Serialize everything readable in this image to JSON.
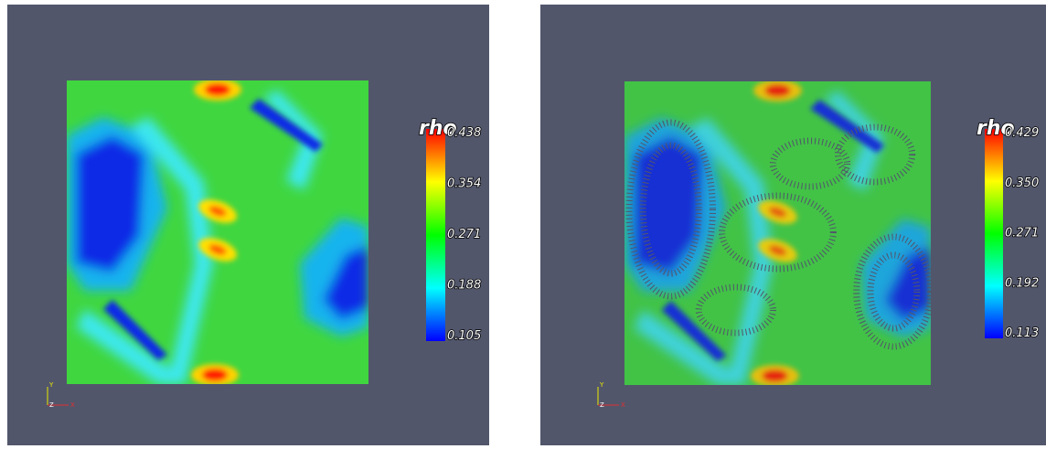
{
  "panels": [
    {
      "legend": {
        "title": "rho",
        "labels": [
          "0.438",
          "0.354",
          "0.271",
          "0.188",
          "0.105"
        ]
      },
      "axes": {
        "y": "Y",
        "z": "Z",
        "x": "X"
      }
    },
    {
      "legend": {
        "title": "rho",
        "labels": [
          "0.429",
          "0.350",
          "0.271",
          "0.192",
          "0.113"
        ]
      },
      "axes": {
        "y": "Y",
        "z": "Z",
        "x": "X"
      }
    }
  ]
}
